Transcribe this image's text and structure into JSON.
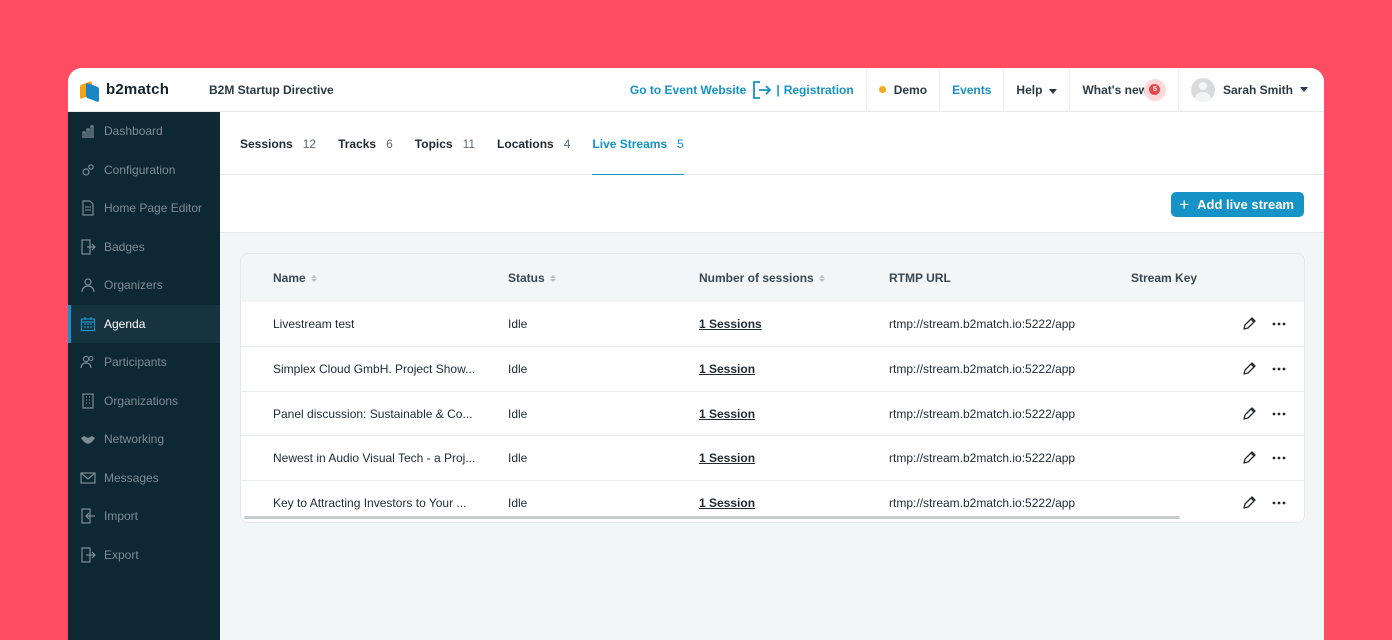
{
  "app": {
    "logo_text": "b2match",
    "event_name": "B2M Startup Directive"
  },
  "topbar": {
    "event_website": "Go to Event Website",
    "registration_sep": "|",
    "registration": "Registration",
    "demo": "Demo",
    "events": "Events",
    "help": "Help",
    "whats_new": "What's new",
    "whats_new_count": "5",
    "user_name": "Sarah Smith",
    "accent_color": "#1592c6",
    "demo_dot_color": "#f5a623"
  },
  "sidebar": {
    "items": [
      {
        "label": "Dashboard",
        "icon": "chart-icon"
      },
      {
        "label": "Configuration",
        "icon": "gears-icon"
      },
      {
        "label": "Home Page Editor",
        "icon": "document-icon"
      },
      {
        "label": "Badges",
        "icon": "badge-icon"
      },
      {
        "label": "Organizers",
        "icon": "organizers-icon"
      },
      {
        "label": "Agenda",
        "icon": "calendar-icon"
      },
      {
        "label": "Participants",
        "icon": "participants-icon"
      },
      {
        "label": "Organizations",
        "icon": "building-icon"
      },
      {
        "label": "Networking",
        "icon": "handshake-icon"
      },
      {
        "label": "Messages",
        "icon": "envelope-icon"
      },
      {
        "label": "Import",
        "icon": "import-icon"
      },
      {
        "label": "Export",
        "icon": "export-icon"
      }
    ],
    "active": "Agenda"
  },
  "tabs": [
    {
      "label": "Sessions",
      "count": "12"
    },
    {
      "label": "Tracks",
      "count": "6"
    },
    {
      "label": "Topics",
      "count": "11"
    },
    {
      "label": "Locations",
      "count": "4"
    },
    {
      "label": "Live Streams",
      "count": "5"
    }
  ],
  "actions": {
    "add_button": "Add live stream",
    "add_icon": "+"
  },
  "table": {
    "columns": [
      "Name",
      "Status",
      "Number of sessions",
      "RTMP URL",
      "Stream Key"
    ],
    "rows": [
      {
        "name": "Livestream test",
        "status": "Idle",
        "sessions": "1 Sessions",
        "rtmp": "rtmp://stream.b2match.io:5222/app",
        "key": ""
      },
      {
        "name": "Simplex Cloud GmbH. Project Show...",
        "status": "Idle",
        "sessions": "1 Session",
        "rtmp": "rtmp://stream.b2match.io:5222/app",
        "key": ""
      },
      {
        "name": "Panel discussion: Sustainable & Co...",
        "status": "Idle",
        "sessions": "1 Session",
        "rtmp": "rtmp://stream.b2match.io:5222/app",
        "key": ""
      },
      {
        "name": "Newest in Audio Visual Tech - a Proj...",
        "status": "Idle",
        "sessions": "1 Session",
        "rtmp": "rtmp://stream.b2match.io:5222/app",
        "key": ""
      },
      {
        "name": "Key to Attracting Investors to Your ...",
        "status": "Idle",
        "sessions": "1 Session",
        "rtmp": "rtmp://stream.b2match.io:5222/app",
        "key": ""
      }
    ]
  }
}
